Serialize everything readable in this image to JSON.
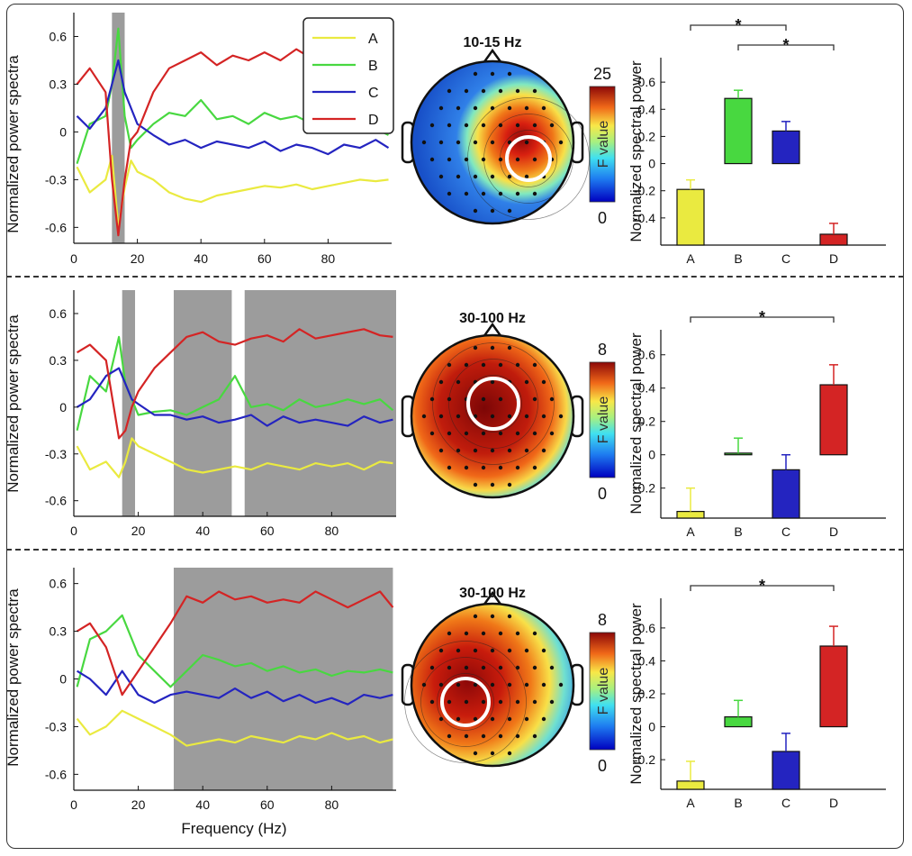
{
  "figure": {
    "x_axis_label": "Frequency (Hz)",
    "spectra_ylabel": "Normalized power spectra",
    "bars_ylabel": "Normalized spectral power",
    "colorbar_title": "F value",
    "conditions": [
      "A",
      "B",
      "C",
      "D"
    ]
  },
  "colors": {
    "A": "#eaea40",
    "B": "#48d840",
    "C": "#2424c0",
    "D": "#d42424",
    "shade": "#9c9c9c"
  },
  "chart_data": [
    {
      "type": "line",
      "panel": "row1-spectra",
      "xlabel": "",
      "ylabel": "Normalized power spectra",
      "xlim": [
        0,
        100
      ],
      "ylim": [
        -0.7,
        0.75
      ],
      "xticks": [
        0,
        20,
        40,
        60,
        80
      ],
      "yticks": [
        0.6,
        0.3,
        0,
        -0.3,
        -0.6
      ],
      "shaded_ranges_hz": [
        [
          12,
          16
        ]
      ],
      "legend": [
        "A",
        "B",
        "C",
        "D"
      ],
      "series": [
        {
          "name": "A",
          "x": [
            1,
            5,
            10,
            12,
            14,
            16,
            18,
            20,
            25,
            30,
            35,
            40,
            45,
            50,
            55,
            60,
            65,
            70,
            75,
            80,
            85,
            90,
            95,
            99
          ],
          "values": [
            -0.22,
            -0.38,
            -0.3,
            -0.15,
            -0.6,
            -0.35,
            -0.18,
            -0.25,
            -0.3,
            -0.38,
            -0.42,
            -0.44,
            -0.4,
            -0.38,
            -0.36,
            -0.34,
            -0.35,
            -0.33,
            -0.36,
            -0.34,
            -0.32,
            -0.3,
            -0.31,
            -0.3
          ]
        },
        {
          "name": "B",
          "x": [
            1,
            5,
            10,
            12,
            14,
            16,
            18,
            20,
            25,
            30,
            35,
            40,
            45,
            50,
            55,
            60,
            65,
            70,
            75,
            80,
            85,
            90,
            95,
            99
          ],
          "values": [
            -0.2,
            0.05,
            0.1,
            0.3,
            0.65,
            0.1,
            -0.1,
            -0.05,
            0.05,
            0.12,
            0.1,
            0.2,
            0.08,
            0.1,
            0.05,
            0.12,
            0.08,
            0.1,
            0.05,
            0.12,
            0.04,
            0.06,
            0.02,
            -0.02
          ]
        },
        {
          "name": "C",
          "x": [
            1,
            5,
            10,
            12,
            14,
            16,
            18,
            20,
            25,
            30,
            35,
            40,
            45,
            50,
            55,
            60,
            65,
            70,
            75,
            80,
            85,
            90,
            95,
            99
          ],
          "values": [
            0.1,
            0.02,
            0.15,
            0.3,
            0.45,
            0.25,
            0.15,
            0.05,
            -0.02,
            -0.08,
            -0.05,
            -0.1,
            -0.06,
            -0.08,
            -0.1,
            -0.06,
            -0.12,
            -0.08,
            -0.1,
            -0.14,
            -0.08,
            -0.1,
            -0.05,
            -0.1
          ]
        },
        {
          "name": "D",
          "x": [
            1,
            5,
            10,
            12,
            14,
            16,
            18,
            20,
            25,
            30,
            35,
            40,
            45,
            50,
            55,
            60,
            65,
            70,
            75,
            80,
            85,
            90,
            95,
            99
          ],
          "values": [
            0.3,
            0.4,
            0.25,
            -0.3,
            -0.65,
            -0.3,
            -0.05,
            0.0,
            0.25,
            0.4,
            0.45,
            0.5,
            0.42,
            0.48,
            0.45,
            0.5,
            0.45,
            0.52,
            0.46,
            0.5,
            0.42,
            0.48,
            0.44,
            0.4
          ]
        }
      ]
    },
    {
      "type": "heatmap",
      "panel": "row1-topomap",
      "title": "10-15 Hz",
      "colorbar_max": "25",
      "colorbar_min": "0",
      "colorbar_label": "F value",
      "hotspot": "right-central"
    },
    {
      "type": "bar",
      "panel": "row1-bars",
      "ylabel": "Normalized spectral power",
      "categories": [
        "A",
        "B",
        "C",
        "D"
      ],
      "values": [
        -0.19,
        0.48,
        0.24,
        -0.52
      ],
      "errors": [
        0.07,
        0.06,
        0.07,
        0.08
      ],
      "ylim": [
        -0.6,
        0.78
      ],
      "yticks": [
        0.6,
        0.4,
        0.2,
        0,
        -0.2,
        -0.4
      ],
      "significance": [
        {
          "from": "A",
          "to": "C",
          "label": "*"
        },
        {
          "from": "B",
          "to": "D",
          "label": "*"
        }
      ]
    },
    {
      "type": "line",
      "panel": "row2-spectra",
      "xlabel": "",
      "ylabel": "Normalized power spectra",
      "xlim": [
        0,
        100
      ],
      "ylim": [
        -0.7,
        0.75
      ],
      "xticks": [
        0,
        20,
        40,
        60,
        80
      ],
      "yticks": [
        0.6,
        0.3,
        0,
        -0.3,
        -0.6
      ],
      "shaded_ranges_hz": [
        [
          15,
          19
        ],
        [
          31,
          49
        ],
        [
          53,
          100
        ]
      ],
      "series": [
        {
          "name": "A",
          "x": [
            1,
            5,
            10,
            14,
            16,
            18,
            20,
            25,
            30,
            35,
            40,
            45,
            50,
            55,
            60,
            65,
            70,
            75,
            80,
            85,
            90,
            95,
            99
          ],
          "values": [
            -0.25,
            -0.4,
            -0.35,
            -0.45,
            -0.35,
            -0.2,
            -0.25,
            -0.3,
            -0.35,
            -0.4,
            -0.42,
            -0.4,
            -0.38,
            -0.4,
            -0.36,
            -0.38,
            -0.4,
            -0.36,
            -0.38,
            -0.36,
            -0.4,
            -0.35,
            -0.36
          ]
        },
        {
          "name": "B",
          "x": [
            1,
            5,
            10,
            14,
            16,
            18,
            20,
            25,
            30,
            35,
            40,
            45,
            50,
            55,
            60,
            65,
            70,
            75,
            80,
            85,
            90,
            95,
            99
          ],
          "values": [
            -0.15,
            0.2,
            0.1,
            0.45,
            0.15,
            0.05,
            -0.05,
            -0.03,
            -0.02,
            -0.05,
            0.0,
            0.05,
            0.2,
            0.0,
            0.02,
            -0.02,
            0.05,
            0.0,
            0.02,
            0.05,
            0.02,
            0.05,
            -0.02
          ]
        },
        {
          "name": "C",
          "x": [
            1,
            5,
            10,
            14,
            16,
            18,
            20,
            25,
            30,
            35,
            40,
            45,
            50,
            55,
            60,
            65,
            70,
            75,
            80,
            85,
            90,
            95,
            99
          ],
          "values": [
            0.0,
            0.05,
            0.2,
            0.25,
            0.15,
            0.05,
            0.02,
            -0.05,
            -0.05,
            -0.08,
            -0.06,
            -0.1,
            -0.08,
            -0.05,
            -0.12,
            -0.06,
            -0.1,
            -0.08,
            -0.1,
            -0.12,
            -0.06,
            -0.1,
            -0.08
          ]
        },
        {
          "name": "D",
          "x": [
            1,
            5,
            10,
            14,
            16,
            18,
            20,
            25,
            30,
            35,
            40,
            45,
            50,
            55,
            60,
            65,
            70,
            75,
            80,
            85,
            90,
            95,
            99
          ],
          "values": [
            0.35,
            0.4,
            0.3,
            -0.2,
            -0.15,
            0.0,
            0.1,
            0.25,
            0.35,
            0.45,
            0.48,
            0.42,
            0.4,
            0.44,
            0.46,
            0.42,
            0.5,
            0.44,
            0.46,
            0.48,
            0.5,
            0.46,
            0.45
          ]
        }
      ]
    },
    {
      "type": "heatmap",
      "panel": "row2-topomap",
      "title": "30-100 Hz",
      "colorbar_max": "8",
      "colorbar_min": "0",
      "colorbar_label": "F value",
      "hotspot": "broad-central"
    },
    {
      "type": "bar",
      "panel": "row2-bars",
      "ylabel": "Normalized spectral power",
      "categories": [
        "A",
        "B",
        "C",
        "D"
      ],
      "values": [
        -0.34,
        0.01,
        -0.09,
        0.42
      ],
      "errors": [
        0.14,
        0.09,
        0.09,
        0.12
      ],
      "ylim": [
        -0.38,
        0.75
      ],
      "yticks": [
        0.6,
        0.4,
        0.2,
        0,
        -0.2
      ],
      "significance": [
        {
          "from": "A",
          "to": "D",
          "label": "*"
        }
      ]
    },
    {
      "type": "line",
      "panel": "row3-spectra",
      "xlabel": "Frequency (Hz)",
      "ylabel": "Normalized power spectra",
      "xlim": [
        0,
        100
      ],
      "ylim": [
        -0.7,
        0.7
      ],
      "xticks": [
        0,
        20,
        40,
        60,
        80
      ],
      "yticks": [
        0.6,
        0.3,
        0,
        -0.3,
        -0.6
      ],
      "shaded_ranges_hz": [
        [
          31,
          99
        ]
      ],
      "series": [
        {
          "name": "A",
          "x": [
            1,
            5,
            10,
            15,
            20,
            25,
            30,
            35,
            40,
            45,
            50,
            55,
            60,
            65,
            70,
            75,
            80,
            85,
            90,
            95,
            99
          ],
          "values": [
            -0.25,
            -0.35,
            -0.3,
            -0.2,
            -0.25,
            -0.3,
            -0.35,
            -0.42,
            -0.4,
            -0.38,
            -0.4,
            -0.36,
            -0.38,
            -0.4,
            -0.36,
            -0.38,
            -0.34,
            -0.38,
            -0.36,
            -0.4,
            -0.38
          ]
        },
        {
          "name": "B",
          "x": [
            1,
            5,
            10,
            15,
            20,
            25,
            30,
            35,
            40,
            45,
            50,
            55,
            60,
            65,
            70,
            75,
            80,
            85,
            90,
            95,
            99
          ],
          "values": [
            -0.05,
            0.25,
            0.3,
            0.4,
            0.15,
            0.05,
            -0.05,
            0.05,
            0.15,
            0.12,
            0.08,
            0.1,
            0.05,
            0.08,
            0.04,
            0.06,
            0.02,
            0.05,
            0.04,
            0.06,
            0.04
          ]
        },
        {
          "name": "C",
          "x": [
            1,
            5,
            10,
            15,
            20,
            25,
            30,
            35,
            40,
            45,
            50,
            55,
            60,
            65,
            70,
            75,
            80,
            85,
            90,
            95,
            99
          ],
          "values": [
            0.05,
            0.0,
            -0.1,
            0.05,
            -0.1,
            -0.15,
            -0.1,
            -0.08,
            -0.1,
            -0.12,
            -0.06,
            -0.12,
            -0.08,
            -0.14,
            -0.1,
            -0.15,
            -0.12,
            -0.16,
            -0.1,
            -0.12,
            -0.1
          ]
        },
        {
          "name": "D",
          "x": [
            1,
            5,
            10,
            15,
            20,
            25,
            30,
            35,
            40,
            45,
            50,
            55,
            60,
            65,
            70,
            75,
            80,
            85,
            90,
            95,
            99
          ],
          "values": [
            0.3,
            0.35,
            0.2,
            -0.1,
            0.05,
            0.2,
            0.35,
            0.52,
            0.48,
            0.55,
            0.5,
            0.52,
            0.48,
            0.5,
            0.48,
            0.55,
            0.5,
            0.45,
            0.5,
            0.55,
            0.45
          ]
        }
      ]
    },
    {
      "type": "heatmap",
      "panel": "row3-topomap",
      "title": "30-100 Hz",
      "colorbar_max": "8",
      "colorbar_min": "0",
      "colorbar_label": "F value",
      "hotspot": "left-central"
    },
    {
      "type": "bar",
      "panel": "row3-bars",
      "ylabel": "Normalized spectral power",
      "categories": [
        "A",
        "B",
        "C",
        "D"
      ],
      "values": [
        -0.33,
        0.06,
        -0.15,
        0.49
      ],
      "errors": [
        0.12,
        0.1,
        0.11,
        0.12
      ],
      "ylim": [
        -0.38,
        0.78
      ],
      "yticks": [
        0.6,
        0.4,
        0.2,
        0,
        -0.2
      ],
      "significance": [
        {
          "from": "A",
          "to": "D",
          "label": "*"
        }
      ]
    }
  ]
}
